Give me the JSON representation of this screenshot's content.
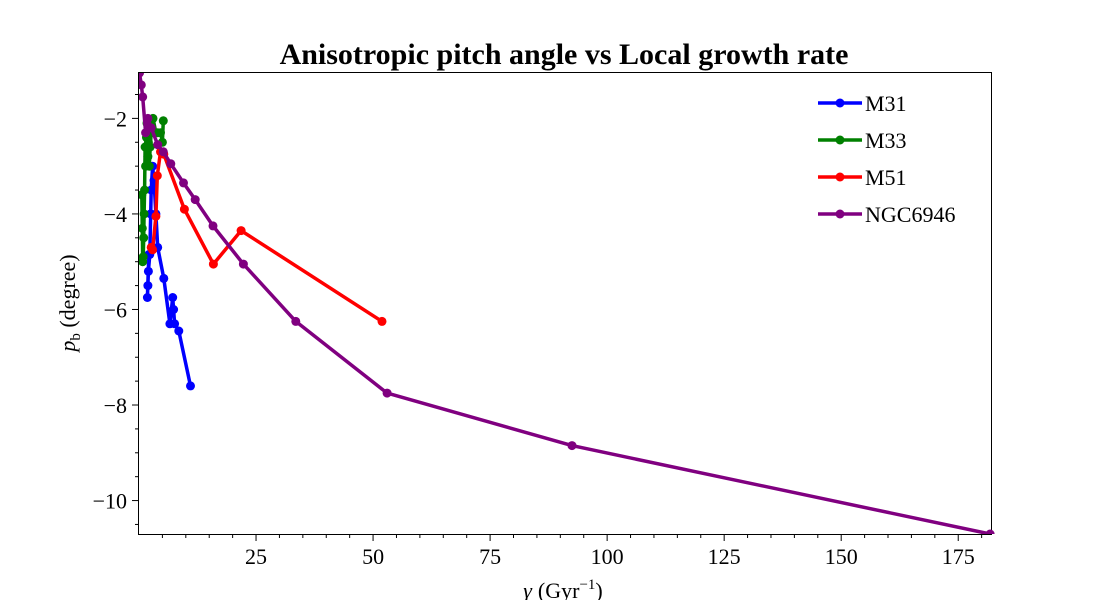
{
  "chart_data": {
    "type": "line",
    "title": "Anisotropic pitch angle vs Local growth rate",
    "xlabel": {
      "base": "γ",
      "unit_prefix": "(Gyr",
      "unit_exp": "−1",
      "unit_suffix": ")"
    },
    "ylabel": {
      "var": "p",
      "sub": "b",
      "unit": " (degree)"
    },
    "xlim": [
      0,
      182
    ],
    "ylim": [
      -10.7,
      -1.05
    ],
    "x_ticks": [
      25,
      50,
      75,
      100,
      125,
      150,
      175
    ],
    "x_tick_labels": [
      "25",
      "50",
      "75",
      "100",
      "125",
      "150",
      "175"
    ],
    "y_ticks": [
      -2,
      -4,
      -6,
      -8,
      -10
    ],
    "y_tick_labels": [
      "−2",
      "−4",
      "−6",
      "−8",
      "−10"
    ],
    "grid": false,
    "legend_position": "top-right",
    "series": [
      {
        "name": "M31",
        "color": "#0000ff",
        "points": [
          [
            11.0,
            -7.6
          ],
          [
            8.5,
            -6.45
          ],
          [
            7.6,
            -6.3
          ],
          [
            7.4,
            -6.0
          ],
          [
            7.2,
            -5.75
          ],
          [
            6.6,
            -6.3
          ],
          [
            5.3,
            -5.35
          ],
          [
            4.0,
            -4.7
          ],
          [
            3.6,
            -4.0
          ],
          [
            3.2,
            -3.3
          ],
          [
            2.9,
            -3.0
          ],
          [
            2.6,
            -3.5
          ],
          [
            2.5,
            -4.0
          ],
          [
            2.3,
            -4.85
          ],
          [
            2.0,
            -5.2
          ],
          [
            1.9,
            -5.5
          ],
          [
            1.8,
            -5.75
          ],
          [
            2.1,
            -4.85
          ]
        ]
      },
      {
        "name": "M33",
        "color": "#008000",
        "points": [
          [
            5.2,
            -2.05
          ],
          [
            5.0,
            -2.5
          ],
          [
            4.6,
            -2.3
          ],
          [
            4.0,
            -2.3
          ],
          [
            3.6,
            -2.3
          ],
          [
            3.0,
            -2.0
          ],
          [
            2.6,
            -2.3
          ],
          [
            2.4,
            -2.6
          ],
          [
            2.2,
            -3.0
          ],
          [
            2.0,
            -2.5
          ],
          [
            1.9,
            -2.8
          ],
          [
            1.7,
            -2.1
          ],
          [
            1.6,
            -2.4
          ],
          [
            1.4,
            -3.0
          ],
          [
            1.3,
            -2.6
          ],
          [
            1.2,
            -3.5
          ],
          [
            1.1,
            -4.0
          ],
          [
            1.0,
            -4.5
          ],
          [
            0.9,
            -4.9
          ],
          [
            0.8,
            -5.0
          ],
          [
            0.7,
            -4.3
          ],
          [
            0.6,
            -3.6
          ]
        ]
      },
      {
        "name": "M51",
        "color": "#ff0000",
        "points": [
          [
            51.9,
            -6.25
          ],
          [
            21.8,
            -4.35
          ],
          [
            15.9,
            -5.05
          ],
          [
            9.7,
            -3.9
          ],
          [
            5.3,
            -2.75
          ],
          [
            4.6,
            -2.7
          ],
          [
            3.9,
            -3.2
          ],
          [
            3.6,
            -4.05
          ],
          [
            2.9,
            -4.75
          ],
          [
            2.6,
            -4.7
          ]
        ]
      },
      {
        "name": "NGC6946",
        "color": "#800080",
        "points": [
          [
            181.8,
            -10.7
          ],
          [
            92.5,
            -8.85
          ],
          [
            53.0,
            -7.75
          ],
          [
            33.5,
            -6.25
          ],
          [
            22.3,
            -5.05
          ],
          [
            15.8,
            -4.25
          ],
          [
            12.0,
            -3.7
          ],
          [
            9.5,
            -3.35
          ],
          [
            6.8,
            -2.95
          ],
          [
            5.2,
            -2.7
          ],
          [
            4.0,
            -2.55
          ],
          [
            2.6,
            -2.2
          ],
          [
            1.9,
            -2.0
          ],
          [
            1.4,
            -2.3
          ],
          [
            0.8,
            -1.55
          ],
          [
            0.5,
            -1.3
          ],
          [
            0.1,
            -1.05
          ]
        ]
      }
    ]
  }
}
